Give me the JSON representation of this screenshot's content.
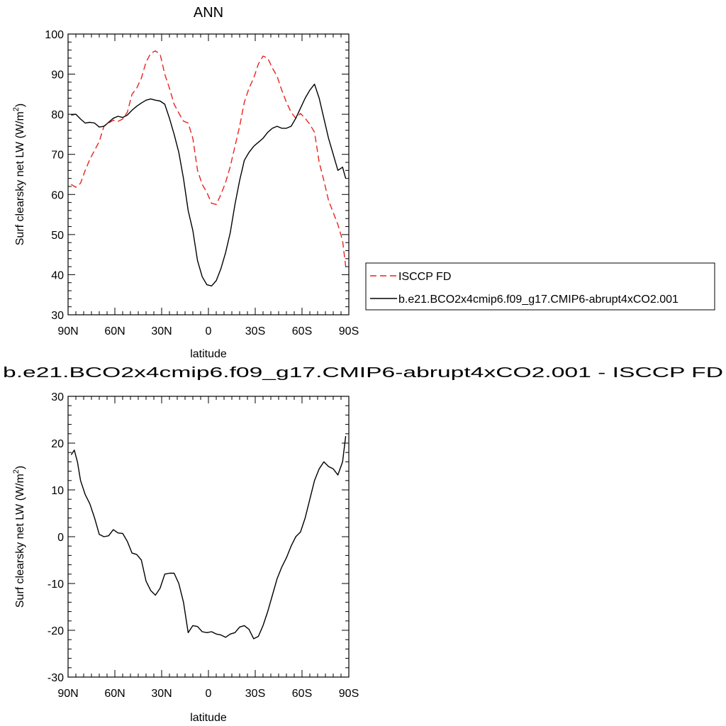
{
  "chart_data": [
    {
      "type": "line",
      "title": "ANN",
      "xlabel": "latitude",
      "ylabel": "Surf clearsky net LW (W/m",
      "ylabel_sup": "2",
      "ylabel_close": ")",
      "xlim": [
        90,
        -90
      ],
      "ylim": [
        30,
        100
      ],
      "x_ticks": [
        {
          "value": 90,
          "label": "90N"
        },
        {
          "value": 60,
          "label": "60N"
        },
        {
          "value": 30,
          "label": "30N"
        },
        {
          "value": 0,
          "label": "0"
        },
        {
          "value": -30,
          "label": "30S"
        },
        {
          "value": -60,
          "label": "60S"
        },
        {
          "value": -90,
          "label": "90S"
        }
      ],
      "y_ticks": [
        30,
        40,
        50,
        60,
        70,
        80,
        90,
        100
      ],
      "legend_position": "right",
      "series": [
        {
          "name": "ISCCP FD",
          "color": "#e8231f",
          "dash": "dashed",
          "x": [
            88,
            85,
            82,
            79,
            76,
            73,
            70,
            67,
            64,
            61,
            58,
            55,
            52,
            49,
            46,
            43,
            40,
            37,
            34,
            31,
            28,
            25,
            22,
            19,
            16,
            13,
            10,
            7,
            4,
            1,
            -2,
            -5,
            -8,
            -11,
            -14,
            -17,
            -20,
            -23,
            -26,
            -29,
            -32,
            -35,
            -38,
            -41,
            -44,
            -47,
            -50,
            -53,
            -56,
            -59,
            -62,
            -65,
            -68,
            -71,
            -74,
            -77,
            -80,
            -83,
            -86,
            -88
          ],
          "values": [
            62.5,
            61.8,
            62.8,
            66,
            68.8,
            71,
            73.2,
            77,
            77.8,
            78.5,
            78.2,
            78.8,
            80.5,
            85,
            86.5,
            89,
            93,
            95.2,
            95.8,
            95,
            90,
            86.5,
            82.5,
            80.3,
            78.3,
            77.8,
            74,
            66,
            62.5,
            60.5,
            57.8,
            57.5,
            60,
            63,
            67,
            72,
            77,
            83,
            86.5,
            89,
            92.5,
            94.5,
            94,
            91.5,
            89.5,
            86,
            83,
            80.5,
            79,
            80.2,
            79,
            77.5,
            75.5,
            68,
            63.5,
            58.5,
            55.5,
            52.5,
            48.5,
            42
          ]
        },
        {
          "name": "b.e21.BCO2x4cmip6.f09_g17.CMIP6-abrupt4xCO2.001",
          "color": "#000000",
          "dash": "solid",
          "x": [
            88,
            85,
            82,
            79,
            76,
            73,
            70,
            67,
            64,
            61,
            58,
            55,
            52,
            49,
            46,
            43,
            40,
            37,
            34,
            31,
            28,
            25,
            22,
            19,
            16,
            13,
            10,
            7,
            4,
            1,
            -2,
            -5,
            -8,
            -11,
            -14,
            -17,
            -20,
            -23,
            -26,
            -29,
            -32,
            -35,
            -38,
            -41,
            -44,
            -47,
            -50,
            -53,
            -56,
            -59,
            -62,
            -65,
            -68,
            -71,
            -74,
            -77,
            -80,
            -83,
            -86,
            -88
          ],
          "values": [
            79.8,
            80,
            78.8,
            77.8,
            78,
            77.8,
            76.8,
            77,
            78,
            79,
            79.5,
            79.2,
            79.8,
            81,
            82,
            82.8,
            83.5,
            83.8,
            83.5,
            83.3,
            82.5,
            79,
            75,
            70.5,
            64,
            56,
            51,
            43.5,
            39.5,
            37.5,
            37.2,
            38.5,
            41.5,
            45.5,
            50.5,
            57.5,
            63.5,
            68.5,
            70.5,
            72,
            73,
            74,
            75.5,
            76.5,
            77,
            76.5,
            76.5,
            77,
            79,
            81.5,
            84,
            86,
            87.5,
            84,
            79,
            74,
            70,
            66,
            66.8,
            64
          ]
        }
      ]
    },
    {
      "type": "line",
      "title": "b.e21.BCO2x4cmip6.f09_g17.CMIP6-abrupt4xCO2.001 - ISCCP FD",
      "xlabel": "latitude",
      "ylabel": "Surf clearsky net LW (W/m",
      "ylabel_sup": "2",
      "ylabel_close": ")",
      "xlim": [
        90,
        -90
      ],
      "ylim": [
        -30,
        30
      ],
      "x_ticks": [
        {
          "value": 90,
          "label": "90N"
        },
        {
          "value": 60,
          "label": "60N"
        },
        {
          "value": 30,
          "label": "30N"
        },
        {
          "value": 0,
          "label": "0"
        },
        {
          "value": -30,
          "label": "30S"
        },
        {
          "value": -60,
          "label": "60S"
        },
        {
          "value": -90,
          "label": "90S"
        }
      ],
      "y_ticks": [
        -30,
        -20,
        -10,
        0,
        10,
        20,
        30
      ],
      "series": [
        {
          "color": "#000000",
          "dash": "solid",
          "x": [
            88,
            86,
            84,
            82,
            79,
            76,
            73,
            70,
            67,
            64,
            61,
            58,
            55,
            52,
            49,
            46,
            43,
            40,
            37,
            34,
            31,
            28,
            25,
            22,
            19,
            16,
            13,
            10,
            7,
            4,
            1,
            -2,
            -5,
            -8,
            -11,
            -14,
            -17,
            -20,
            -23,
            -26,
            -29,
            -32,
            -35,
            -38,
            -41,
            -44,
            -47,
            -50,
            -53,
            -56,
            -59,
            -62,
            -65,
            -68,
            -71,
            -74,
            -77,
            -80,
            -83,
            -86,
            -88
          ],
          "values": [
            17.5,
            18.5,
            16,
            12,
            9,
            7,
            4,
            0.5,
            0,
            0.2,
            1.5,
            0.8,
            0.7,
            -1,
            -3.5,
            -3.8,
            -5,
            -9.5,
            -11.5,
            -12.5,
            -11,
            -8,
            -7.8,
            -7.8,
            -10,
            -14,
            -20.5,
            -19,
            -19.2,
            -20.3,
            -20.5,
            -20.3,
            -20.8,
            -21,
            -21.5,
            -20.8,
            -20.5,
            -19.3,
            -19,
            -19.8,
            -21.8,
            -21.3,
            -19,
            -16,
            -12.5,
            -9,
            -6.5,
            -4.5,
            -2,
            0,
            1,
            4,
            8,
            12,
            14.5,
            16,
            15,
            14.5,
            13.2,
            16,
            21.5
          ]
        }
      ]
    }
  ]
}
